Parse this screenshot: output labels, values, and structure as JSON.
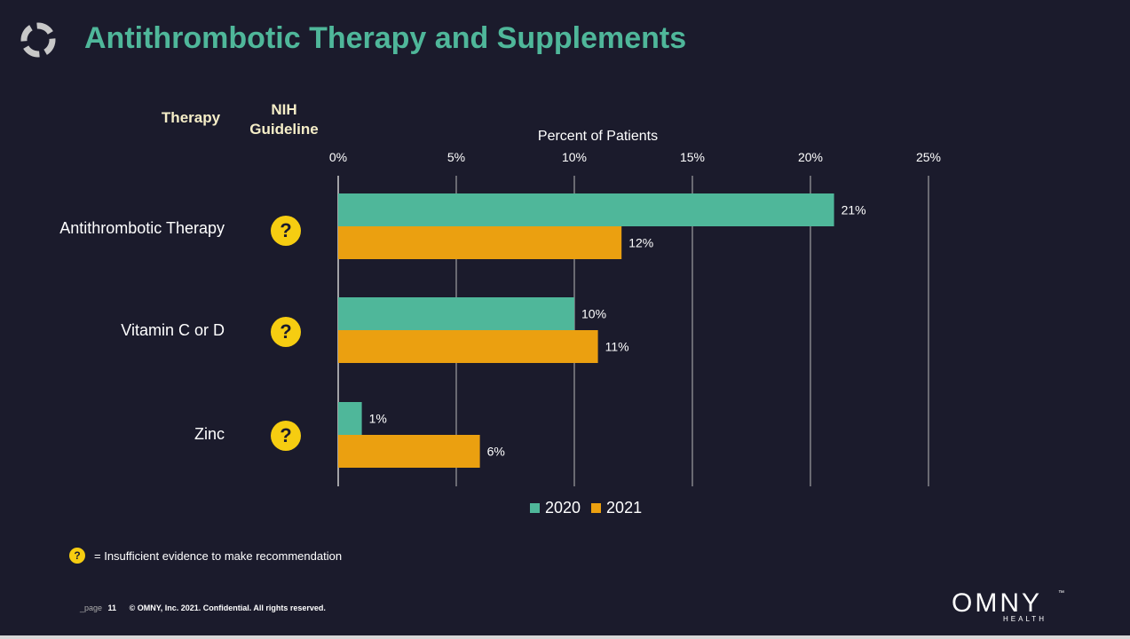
{
  "title": "Antithrombotic Therapy and Supplements",
  "headers": {
    "therapy": "Therapy",
    "nih_line1": "NIH",
    "nih_line2": "Guideline"
  },
  "guideline_icon": "question-mark-icon",
  "guideline_symbol": "?",
  "footnote": "= Insufficient evidence to make recommendation",
  "footer": {
    "page_label": "_page",
    "page_number": "11",
    "copyright": "© OMNY, Inc. 2021. Confidential. All rights reserved."
  },
  "brand": {
    "name": "OMNY",
    "tm": "™",
    "sub": "HEALTH"
  },
  "colors": {
    "background": "#1b1b2c",
    "title": "#4fb79a",
    "series_2020": "#4fb79a",
    "series_2021": "#eba010",
    "icon": "#f6cd11"
  },
  "chart_data": {
    "type": "bar",
    "orientation": "horizontal",
    "xlabel": "Percent of Patients",
    "xlim": [
      0,
      25
    ],
    "xticks": [
      "0%",
      "5%",
      "10%",
      "15%",
      "20%",
      "25%"
    ],
    "categories": [
      "Antithrombotic Therapy",
      "Vitamin C or D",
      "Zinc"
    ],
    "series": [
      {
        "name": "2020",
        "values": [
          21,
          10,
          1
        ],
        "labels": [
          "21%",
          "10%",
          "1%"
        ],
        "color": "#4fb79a"
      },
      {
        "name": "2021",
        "values": [
          12,
          11,
          6
        ],
        "labels": [
          "12%",
          "11%",
          "6%"
        ],
        "color": "#eba010"
      }
    ],
    "grid": true,
    "legend": "bottom"
  }
}
